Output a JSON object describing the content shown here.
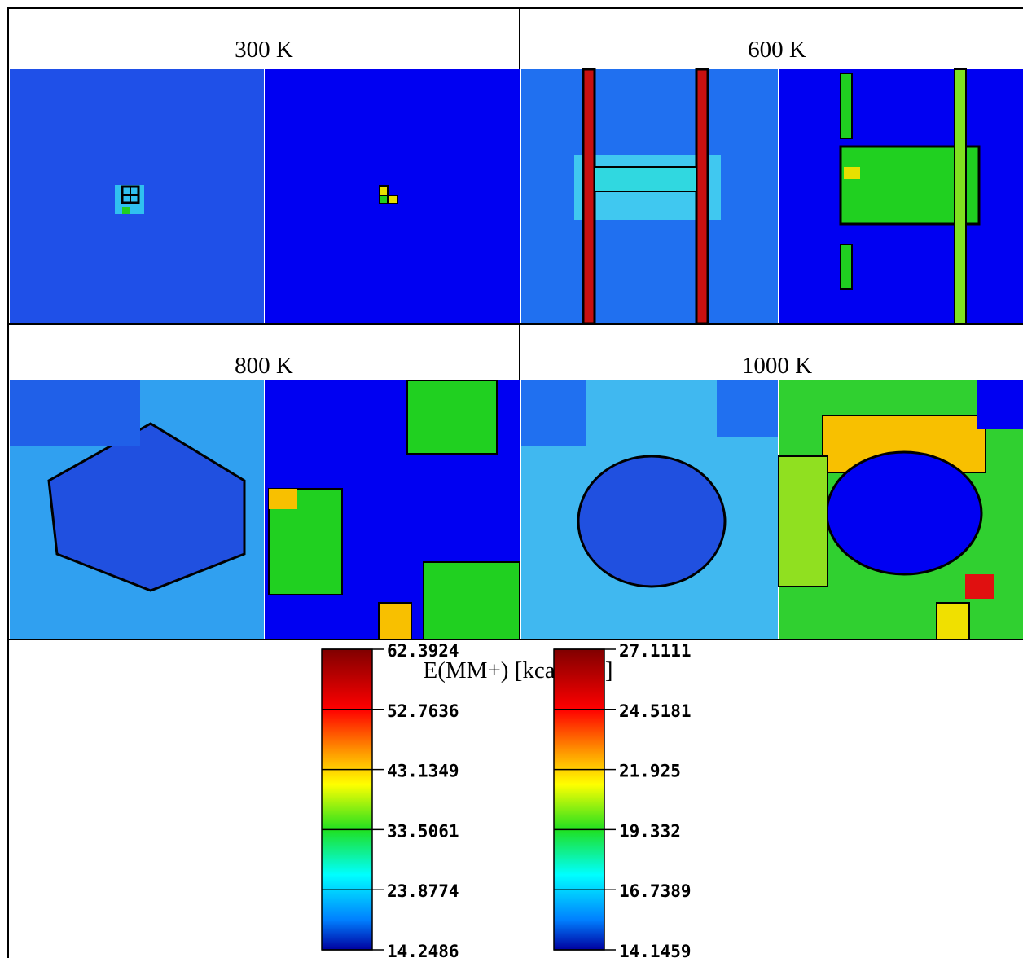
{
  "panels": [
    {
      "title": "300 K"
    },
    {
      "title": "600 K"
    },
    {
      "title": "800 K"
    },
    {
      "title": "1000 K"
    }
  ],
  "legend": {
    "title": "E(MM+) [kcal/mol]",
    "colorbars": [
      {
        "ticks": [
          62.3924,
          52.7636,
          43.1349,
          33.5061,
          23.8774,
          14.2486
        ]
      },
      {
        "ticks": [
          27.1111,
          24.5181,
          21.925,
          19.332,
          16.7389,
          14.1459
        ]
      }
    ]
  }
}
